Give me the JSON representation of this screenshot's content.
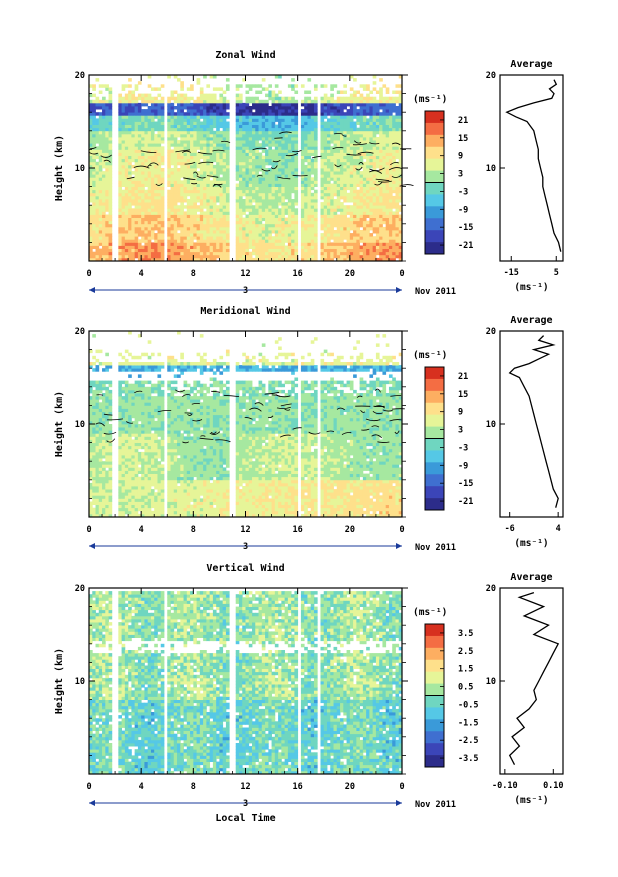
{
  "figure": {
    "xlabel": "Local Time",
    "date_label": "Nov 2011",
    "day_label": "3"
  },
  "chart_data": [
    {
      "type": "heatmap",
      "title": "Zonal Wind",
      "ylabel": "Height (km)",
      "xlim": [
        0,
        24
      ],
      "ylim": [
        0,
        20
      ],
      "x_ticks": [
        "0",
        "4",
        "8",
        "12",
        "16",
        "20",
        "0"
      ],
      "y_ticks": [
        "20",
        "10"
      ],
      "colorbar": {
        "unit": "(ms⁻¹)",
        "ticks": [
          "21",
          "15",
          "9",
          "3",
          "-3",
          "-9",
          "-15",
          "-21"
        ],
        "range": [
          -24,
          24
        ]
      },
      "gaps_hours": [
        [
          1.8,
          2.3
        ],
        [
          5.7,
          6.1
        ],
        [
          10.8,
          11.2
        ],
        [
          15.9,
          16.3
        ],
        [
          17.5,
          17.8
        ]
      ],
      "profile": {
        "title": "Average",
        "xlabel": "(ms⁻¹)",
        "x_ticks": [
          "-15",
          "5"
        ],
        "xlim": [
          -20,
          8
        ],
        "y": [
          1,
          2,
          3,
          4,
          5,
          6,
          7,
          8,
          9,
          10,
          11,
          12,
          13,
          14,
          15,
          15.5,
          16,
          16.5,
          17,
          17.5,
          18,
          18.5,
          19,
          19.5
        ],
        "x": [
          7,
          6,
          4,
          3,
          2,
          1,
          0,
          -1,
          -1,
          -2,
          -3,
          -3,
          -4,
          -5,
          -8,
          -13,
          -17,
          -12,
          -5,
          3,
          4,
          2,
          5,
          4
        ]
      }
    },
    {
      "type": "heatmap",
      "title": "Meridional Wind",
      "ylabel": "Height (km)",
      "xlim": [
        0,
        24
      ],
      "ylim": [
        0,
        20
      ],
      "x_ticks": [
        "0",
        "4",
        "8",
        "12",
        "16",
        "20",
        "0"
      ],
      "y_ticks": [
        "20",
        "10"
      ],
      "colorbar": {
        "unit": "(ms⁻¹)",
        "ticks": [
          "21",
          "15",
          "9",
          "3",
          "-3",
          "-9",
          "-15",
          "-21"
        ],
        "range": [
          -24,
          24
        ]
      },
      "gaps_hours": [
        [
          1.8,
          2.3
        ],
        [
          5.7,
          6.1
        ],
        [
          10.8,
          11.2
        ],
        [
          15.9,
          16.3
        ],
        [
          17.5,
          17.8
        ]
      ],
      "profile": {
        "title": "Average",
        "xlabel": "(ms⁻¹)",
        "x_ticks": [
          "-6",
          "4"
        ],
        "xlim": [
          -8,
          5
        ],
        "y": [
          1,
          2,
          3,
          4,
          5,
          6,
          7,
          8,
          9,
          10,
          11,
          12,
          13,
          14,
          15,
          15.5,
          16,
          16.5,
          17,
          17.5,
          18,
          18.5,
          19,
          19.5
        ],
        "x": [
          3.5,
          4,
          3,
          2.5,
          2,
          1.5,
          1,
          0.5,
          0,
          -0.5,
          -1,
          -1.5,
          -2,
          -3,
          -4,
          -6,
          -5,
          -2,
          0,
          2,
          -1,
          3,
          0,
          1
        ]
      }
    },
    {
      "type": "heatmap",
      "title": "Vertical Wind",
      "ylabel": "Height (km)",
      "xlim": [
        0,
        24
      ],
      "ylim": [
        0,
        20
      ],
      "x_ticks": [
        "0",
        "4",
        "8",
        "12",
        "16",
        "20",
        "0"
      ],
      "y_ticks": [
        "20",
        "10"
      ],
      "colorbar": {
        "unit": "(ms⁻¹)",
        "ticks": [
          "3.5",
          "2.5",
          "1.5",
          "0.5",
          "-0.5",
          "-1.5",
          "-2.5",
          "-3.5"
        ],
        "range": [
          -4,
          4
        ]
      },
      "gaps_hours": [
        [
          1.8,
          2.3
        ],
        [
          5.7,
          6.1
        ],
        [
          10.8,
          11.2
        ],
        [
          15.9,
          16.3
        ],
        [
          17.5,
          17.8
        ]
      ],
      "profile": {
        "title": "Average",
        "xlabel": "(ms⁻¹)",
        "x_ticks": [
          "-0.10",
          "0.10"
        ],
        "xlim": [
          -0.12,
          0.14
        ],
        "y": [
          1,
          2,
          3,
          4,
          5,
          6,
          7,
          8,
          9,
          10,
          11,
          12,
          13,
          14,
          15,
          16,
          17,
          18,
          19,
          19.5
        ],
        "x": [
          -0.06,
          -0.08,
          -0.04,
          -0.07,
          -0.02,
          -0.05,
          0.0,
          0.03,
          0.02,
          0.04,
          0.06,
          0.08,
          0.1,
          0.12,
          0.02,
          0.08,
          -0.02,
          0.06,
          -0.04,
          0.02
        ]
      }
    }
  ]
}
